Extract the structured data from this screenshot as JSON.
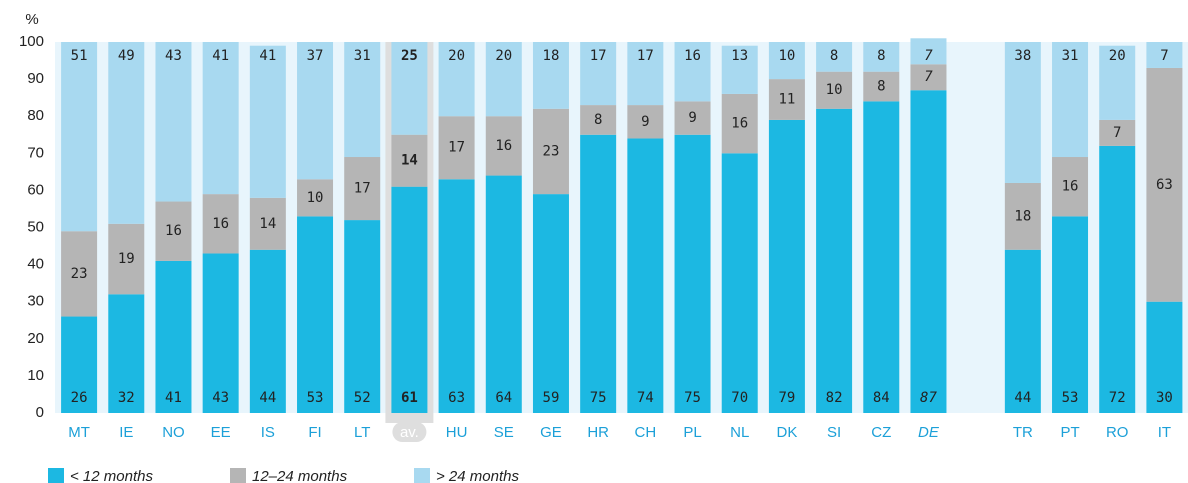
{
  "chart_data": {
    "type": "stacked_bar",
    "y_label": "%",
    "categories": [
      "MT",
      "IE",
      "NO",
      "EE",
      "IS",
      "FI",
      "LT",
      "av.",
      "HU",
      "SE",
      "GE",
      "HR",
      "CH",
      "PL",
      "NL",
      "DK",
      "SI",
      "CZ",
      "DE",
      null,
      "TR",
      "PT",
      "RO",
      "IT"
    ],
    "series": [
      {
        "name": "< 12 months",
        "color": "#1cb8e2",
        "values": [
          26,
          32,
          41,
          43,
          44,
          53,
          52,
          61,
          63,
          64,
          59,
          75,
          74,
          75,
          70,
          79,
          82,
          84,
          87,
          null,
          44,
          53,
          72,
          30
        ]
      },
      {
        "name": "12–24 months",
        "color": "#b5b5b5",
        "values": [
          23,
          19,
          16,
          16,
          14,
          10,
          17,
          14,
          17,
          16,
          23,
          8,
          9,
          9,
          16,
          11,
          10,
          8,
          7,
          null,
          18,
          16,
          7,
          63
        ]
      },
      {
        "name": "> 24 months",
        "color": "#a8d9f0",
        "values": [
          51,
          49,
          43,
          41,
          41,
          37,
          31,
          25,
          20,
          20,
          18,
          17,
          17,
          16,
          13,
          10,
          8,
          8,
          7,
          null,
          38,
          31,
          20,
          7
        ]
      }
    ],
    "ylim": [
      0,
      100
    ],
    "yticks": [
      0,
      10,
      20,
      30,
      40,
      50,
      60,
      70,
      80,
      90,
      100
    ],
    "grid": false,
    "legend": "bottom-left",
    "highlight_index": 7,
    "italic_index": 18
  }
}
